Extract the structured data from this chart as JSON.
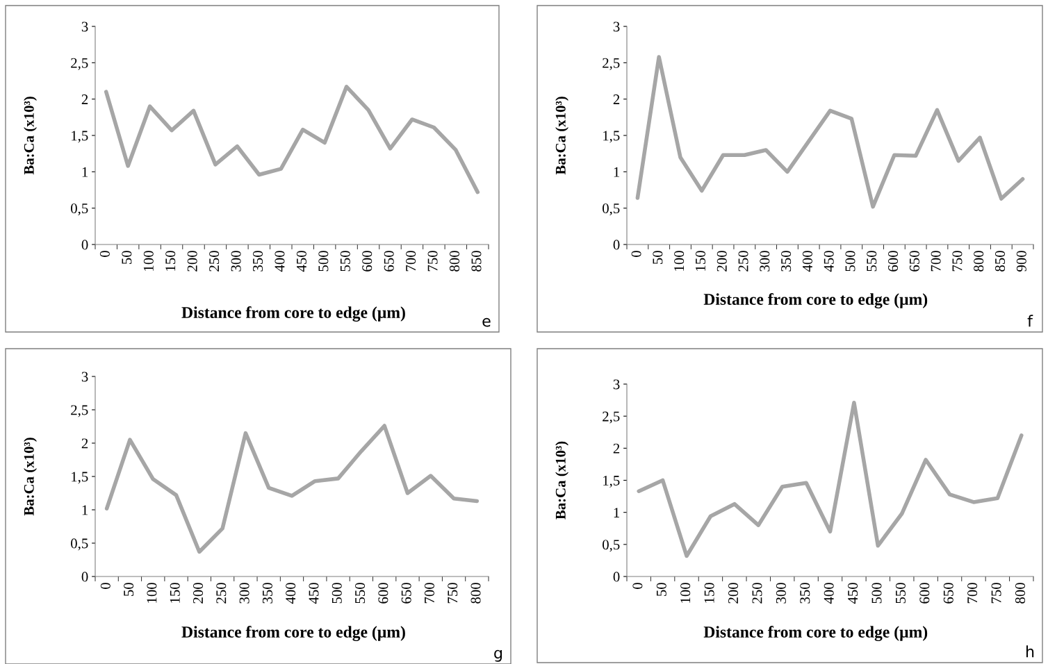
{
  "chart_data": [
    {
      "type": "line",
      "xlabel": "Distance from core to edge (µm)",
      "ylabel": "Ba:Ca (x10³)",
      "annotations": [
        "e"
      ],
      "categories": [
        "0",
        "50",
        "100",
        "150",
        "200",
        "250",
        "300",
        "350",
        "400",
        "450",
        "500",
        "550",
        "600",
        "650",
        "700",
        "750",
        "800",
        "850"
      ],
      "series": [
        {
          "color": "#a6a6a6",
          "values": [
            2.1,
            1.08,
            1.9,
            1.57,
            1.84,
            1.1,
            1.35,
            0.96,
            1.04,
            1.58,
            1.4,
            2.17,
            1.85,
            1.32,
            1.72,
            1.61,
            1.3,
            0.72
          ]
        }
      ],
      "ylim": [
        0,
        3
      ],
      "yticks": [
        0,
        {
          "value": 0.5,
          "label": "0,5"
        },
        1,
        {
          "value": 1.5,
          "label": "1,5"
        },
        2,
        {
          "value": 2.5,
          "label": "2,5"
        },
        3
      ],
      "grid": false,
      "legend": false
    },
    {
      "type": "line",
      "xlabel": "Distance from core to edge (µm)",
      "ylabel": "Ba:Ca (x10³)",
      "annotations": [
        "f"
      ],
      "categories": [
        "0",
        "50",
        "100",
        "150",
        "200",
        "250",
        "300",
        "350",
        "400",
        "450",
        "500",
        "550",
        "600",
        "650",
        "700",
        "750",
        "800",
        "850",
        "900"
      ],
      "series": [
        {
          "color": "#a6a6a6",
          "values": [
            0.64,
            2.58,
            1.2,
            0.74,
            1.23,
            1.23,
            1.3,
            1.0,
            1.42,
            1.84,
            1.73,
            0.52,
            1.23,
            1.22,
            1.85,
            1.15,
            1.47,
            0.63,
            0.9
          ]
        }
      ],
      "ylim": [
        0,
        3
      ],
      "yticks": [
        0,
        {
          "value": 0.5,
          "label": "0,5"
        },
        1,
        {
          "value": 1.5,
          "label": "1,5"
        },
        2,
        {
          "value": 2.5,
          "label": "2,5"
        },
        3
      ],
      "grid": false,
      "legend": false
    },
    {
      "type": "line",
      "xlabel": "Distance from core to edge (µm)",
      "ylabel": "Ba:Ca (x10³)",
      "annotations": [
        "g"
      ],
      "categories": [
        "0",
        "50",
        "100",
        "150",
        "200",
        "250",
        "300",
        "350",
        "400",
        "450",
        "500",
        "550",
        "600",
        "650",
        "700",
        "750",
        "800"
      ],
      "series": [
        {
          "color": "#a6a6a6",
          "values": [
            1.02,
            2.05,
            1.46,
            1.22,
            0.37,
            0.72,
            2.15,
            1.33,
            1.21,
            1.43,
            1.47,
            1.88,
            2.26,
            1.25,
            1.51,
            1.17,
            1.13
          ]
        }
      ],
      "ylim": [
        0,
        3
      ],
      "yticks": [
        0,
        {
          "value": 0.5,
          "label": "0,5"
        },
        1,
        {
          "value": 1.5,
          "label": "1,5"
        },
        2,
        {
          "value": 2.5,
          "label": "2,5"
        },
        3
      ],
      "grid": false,
      "legend": false
    },
    {
      "type": "line",
      "xlabel": "Distance from core to edge (µm)",
      "ylabel": "Ba:Ca (x10³)",
      "annotations": [
        "h"
      ],
      "categories": [
        "0",
        "50",
        "100",
        "150",
        "200",
        "250",
        "300",
        "350",
        "400",
        "450",
        "500",
        "550",
        "600",
        "650",
        "700",
        "750",
        "800"
      ],
      "series": [
        {
          "color": "#a6a6a6",
          "values": [
            1.33,
            1.5,
            0.32,
            0.94,
            1.13,
            0.8,
            1.4,
            1.46,
            0.7,
            2.71,
            0.48,
            0.98,
            1.82,
            1.28,
            1.16,
            1.22,
            2.2
          ]
        }
      ],
      "ylim": [
        0,
        3
      ],
      "yticks": [
        0,
        {
          "value": 0.5,
          "label": "0,5"
        },
        1,
        {
          "value": 1.5,
          "label": "1,5"
        },
        2,
        {
          "value": 2.5,
          "label": "2,5"
        },
        3
      ],
      "grid": false,
      "legend": false
    }
  ]
}
